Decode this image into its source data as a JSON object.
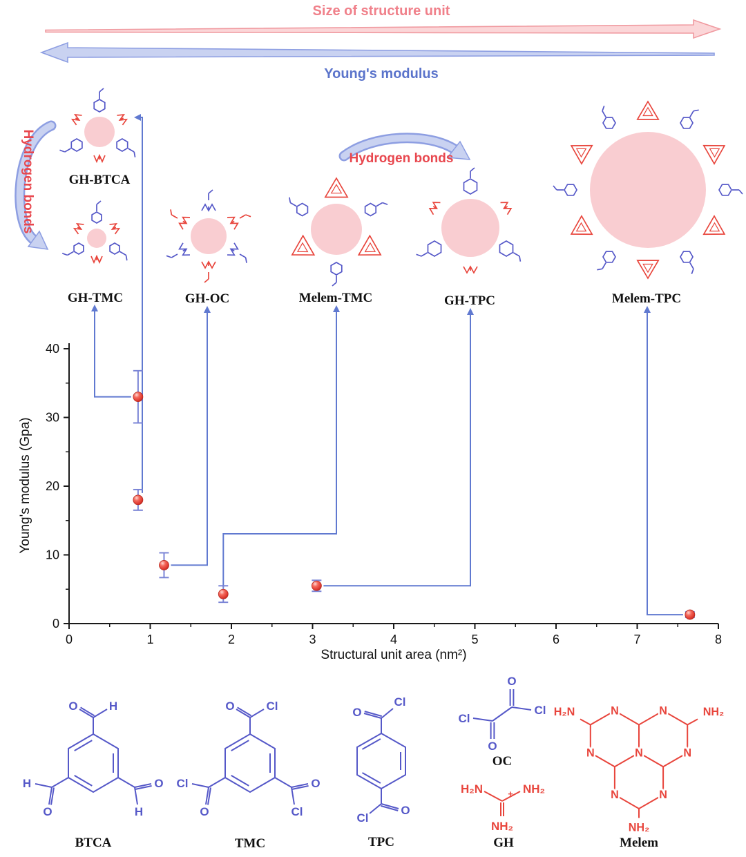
{
  "titles": {
    "size_arrow": "Size of structure unit",
    "modulus_arrow": "Young's modulus",
    "hydrogen_bonds_left": "Hydrogen bonds",
    "hydrogen_bonds_mid": "Hydrogen bonds"
  },
  "structures": [
    {
      "label": "GH-BTCA"
    },
    {
      "label": "GH-TMC"
    },
    {
      "label": "GH-OC"
    },
    {
      "label": "Melem-TMC"
    },
    {
      "label": "GH-TPC"
    },
    {
      "label": "Melem-TPC"
    }
  ],
  "molecules": [
    {
      "label": "BTCA"
    },
    {
      "label": "TMC"
    },
    {
      "label": "TPC"
    },
    {
      "label": "OC"
    },
    {
      "label": "GH"
    },
    {
      "label": "Melem"
    }
  ],
  "atoms": {
    "O": "O",
    "Cl": "Cl",
    "H": "H",
    "N": "N",
    "NH2": "NH₂",
    "H2N": "H₂N",
    "plus": "+"
  },
  "chart_data": {
    "type": "scatter",
    "title": "",
    "xlabel": "Structural unit area (nm²)",
    "ylabel": "Young's modulus (Gpa)",
    "xlim": [
      0,
      8
    ],
    "ylim": [
      0,
      40
    ],
    "xticks": [
      0,
      1,
      2,
      3,
      4,
      5,
      6,
      7,
      8
    ],
    "yticks": [
      0,
      10,
      20,
      30,
      40
    ],
    "grid": false,
    "legend": "none",
    "points": [
      {
        "label": "GH-TMC",
        "x": 0.85,
        "y": 33.0,
        "yerr": 3.8
      },
      {
        "label": "GH-BTCA",
        "x": 0.85,
        "y": 18.0,
        "yerr": 1.5
      },
      {
        "label": "GH-OC",
        "x": 1.17,
        "y": 8.5,
        "yerr": 1.8
      },
      {
        "label": "Melem-TMC",
        "x": 1.9,
        "y": 4.3,
        "yerr": 1.2
      },
      {
        "label": "GH-TPC",
        "x": 3.05,
        "y": 5.5,
        "yerr": 0.8
      },
      {
        "label": "Melem-TPC",
        "x": 7.65,
        "y": 1.3,
        "yerr": 0.4
      }
    ]
  },
  "colors": {
    "blue_struct": "#5558c8",
    "red_struct": "#e8453c",
    "pink_fill": "#f9cdd1",
    "arrow_blue": "#8d9ee2",
    "arrow_blue_fill": "#c9d2f1",
    "arrow_pink": "#f09aa0",
    "arrow_pink_fill": "#fbd6d8",
    "title_pink": "#f0808a",
    "title_blue": "#5b74cb",
    "hb_red": "#e8474e",
    "connector_blue": "#6079d0",
    "errorbar_blue": "#7b85d6",
    "point_red": "#e8453c",
    "axis_black": "#1a1a1a"
  }
}
